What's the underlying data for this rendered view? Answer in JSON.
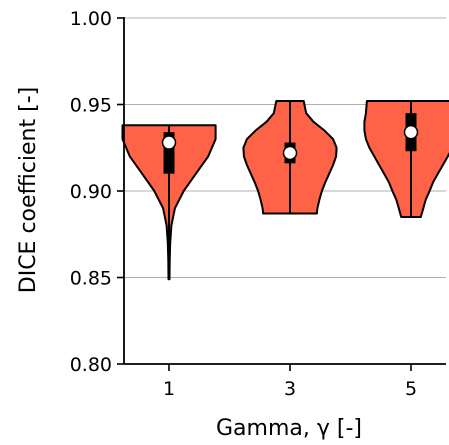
{
  "chart_data": {
    "type": "violin",
    "title": "",
    "xlabel": "Gamma, γ [-]",
    "ylabel": "DICE coefficient [-]",
    "ylim": [
      0.8,
      1.0
    ],
    "yticks": [
      "0.80",
      "0.85",
      "0.90",
      "0.95",
      "1.00"
    ],
    "grid": "horizontal",
    "colors": {
      "violin_fill": "#ff6347",
      "edge": "#000000",
      "grid": "#b0b0b0",
      "median": "#ffffff"
    },
    "categories": [
      "1",
      "3",
      "5"
    ],
    "violins": [
      {
        "label": "1",
        "min": 0.849,
        "max": 0.938,
        "q1": 0.91,
        "q3": 0.934,
        "median": 0.928,
        "profile": [
          [
            0.849,
            0.01
          ],
          [
            0.86,
            0.015
          ],
          [
            0.87,
            0.025
          ],
          [
            0.88,
            0.05
          ],
          [
            0.89,
            0.12
          ],
          [
            0.9,
            0.3
          ],
          [
            0.91,
            0.55
          ],
          [
            0.92,
            0.8
          ],
          [
            0.93,
            0.95
          ],
          [
            0.934,
            0.95
          ],
          [
            0.938,
            0.95
          ]
        ]
      },
      {
        "label": "3",
        "min": 0.887,
        "max": 0.952,
        "q1": 0.916,
        "q3": 0.928,
        "median": 0.922,
        "profile": [
          [
            0.887,
            0.55
          ],
          [
            0.89,
            0.56
          ],
          [
            0.895,
            0.6
          ],
          [
            0.9,
            0.65
          ],
          [
            0.905,
            0.72
          ],
          [
            0.91,
            0.8
          ],
          [
            0.915,
            0.88
          ],
          [
            0.92,
            0.94
          ],
          [
            0.925,
            0.95
          ],
          [
            0.93,
            0.88
          ],
          [
            0.935,
            0.7
          ],
          [
            0.94,
            0.48
          ],
          [
            0.945,
            0.33
          ],
          [
            0.952,
            0.28
          ]
        ]
      },
      {
        "label": "5",
        "min": 0.885,
        "max": 0.952,
        "q1": 0.923,
        "q3": 0.945,
        "median": 0.934,
        "profile": [
          [
            0.885,
            0.2
          ],
          [
            0.89,
            0.25
          ],
          [
            0.895,
            0.3
          ],
          [
            0.9,
            0.38
          ],
          [
            0.905,
            0.45
          ],
          [
            0.91,
            0.55
          ],
          [
            0.915,
            0.65
          ],
          [
            0.92,
            0.75
          ],
          [
            0.925,
            0.85
          ],
          [
            0.93,
            0.92
          ],
          [
            0.935,
            0.95
          ],
          [
            0.94,
            0.95
          ],
          [
            0.945,
            0.92
          ],
          [
            0.952,
            0.9
          ]
        ]
      }
    ]
  }
}
